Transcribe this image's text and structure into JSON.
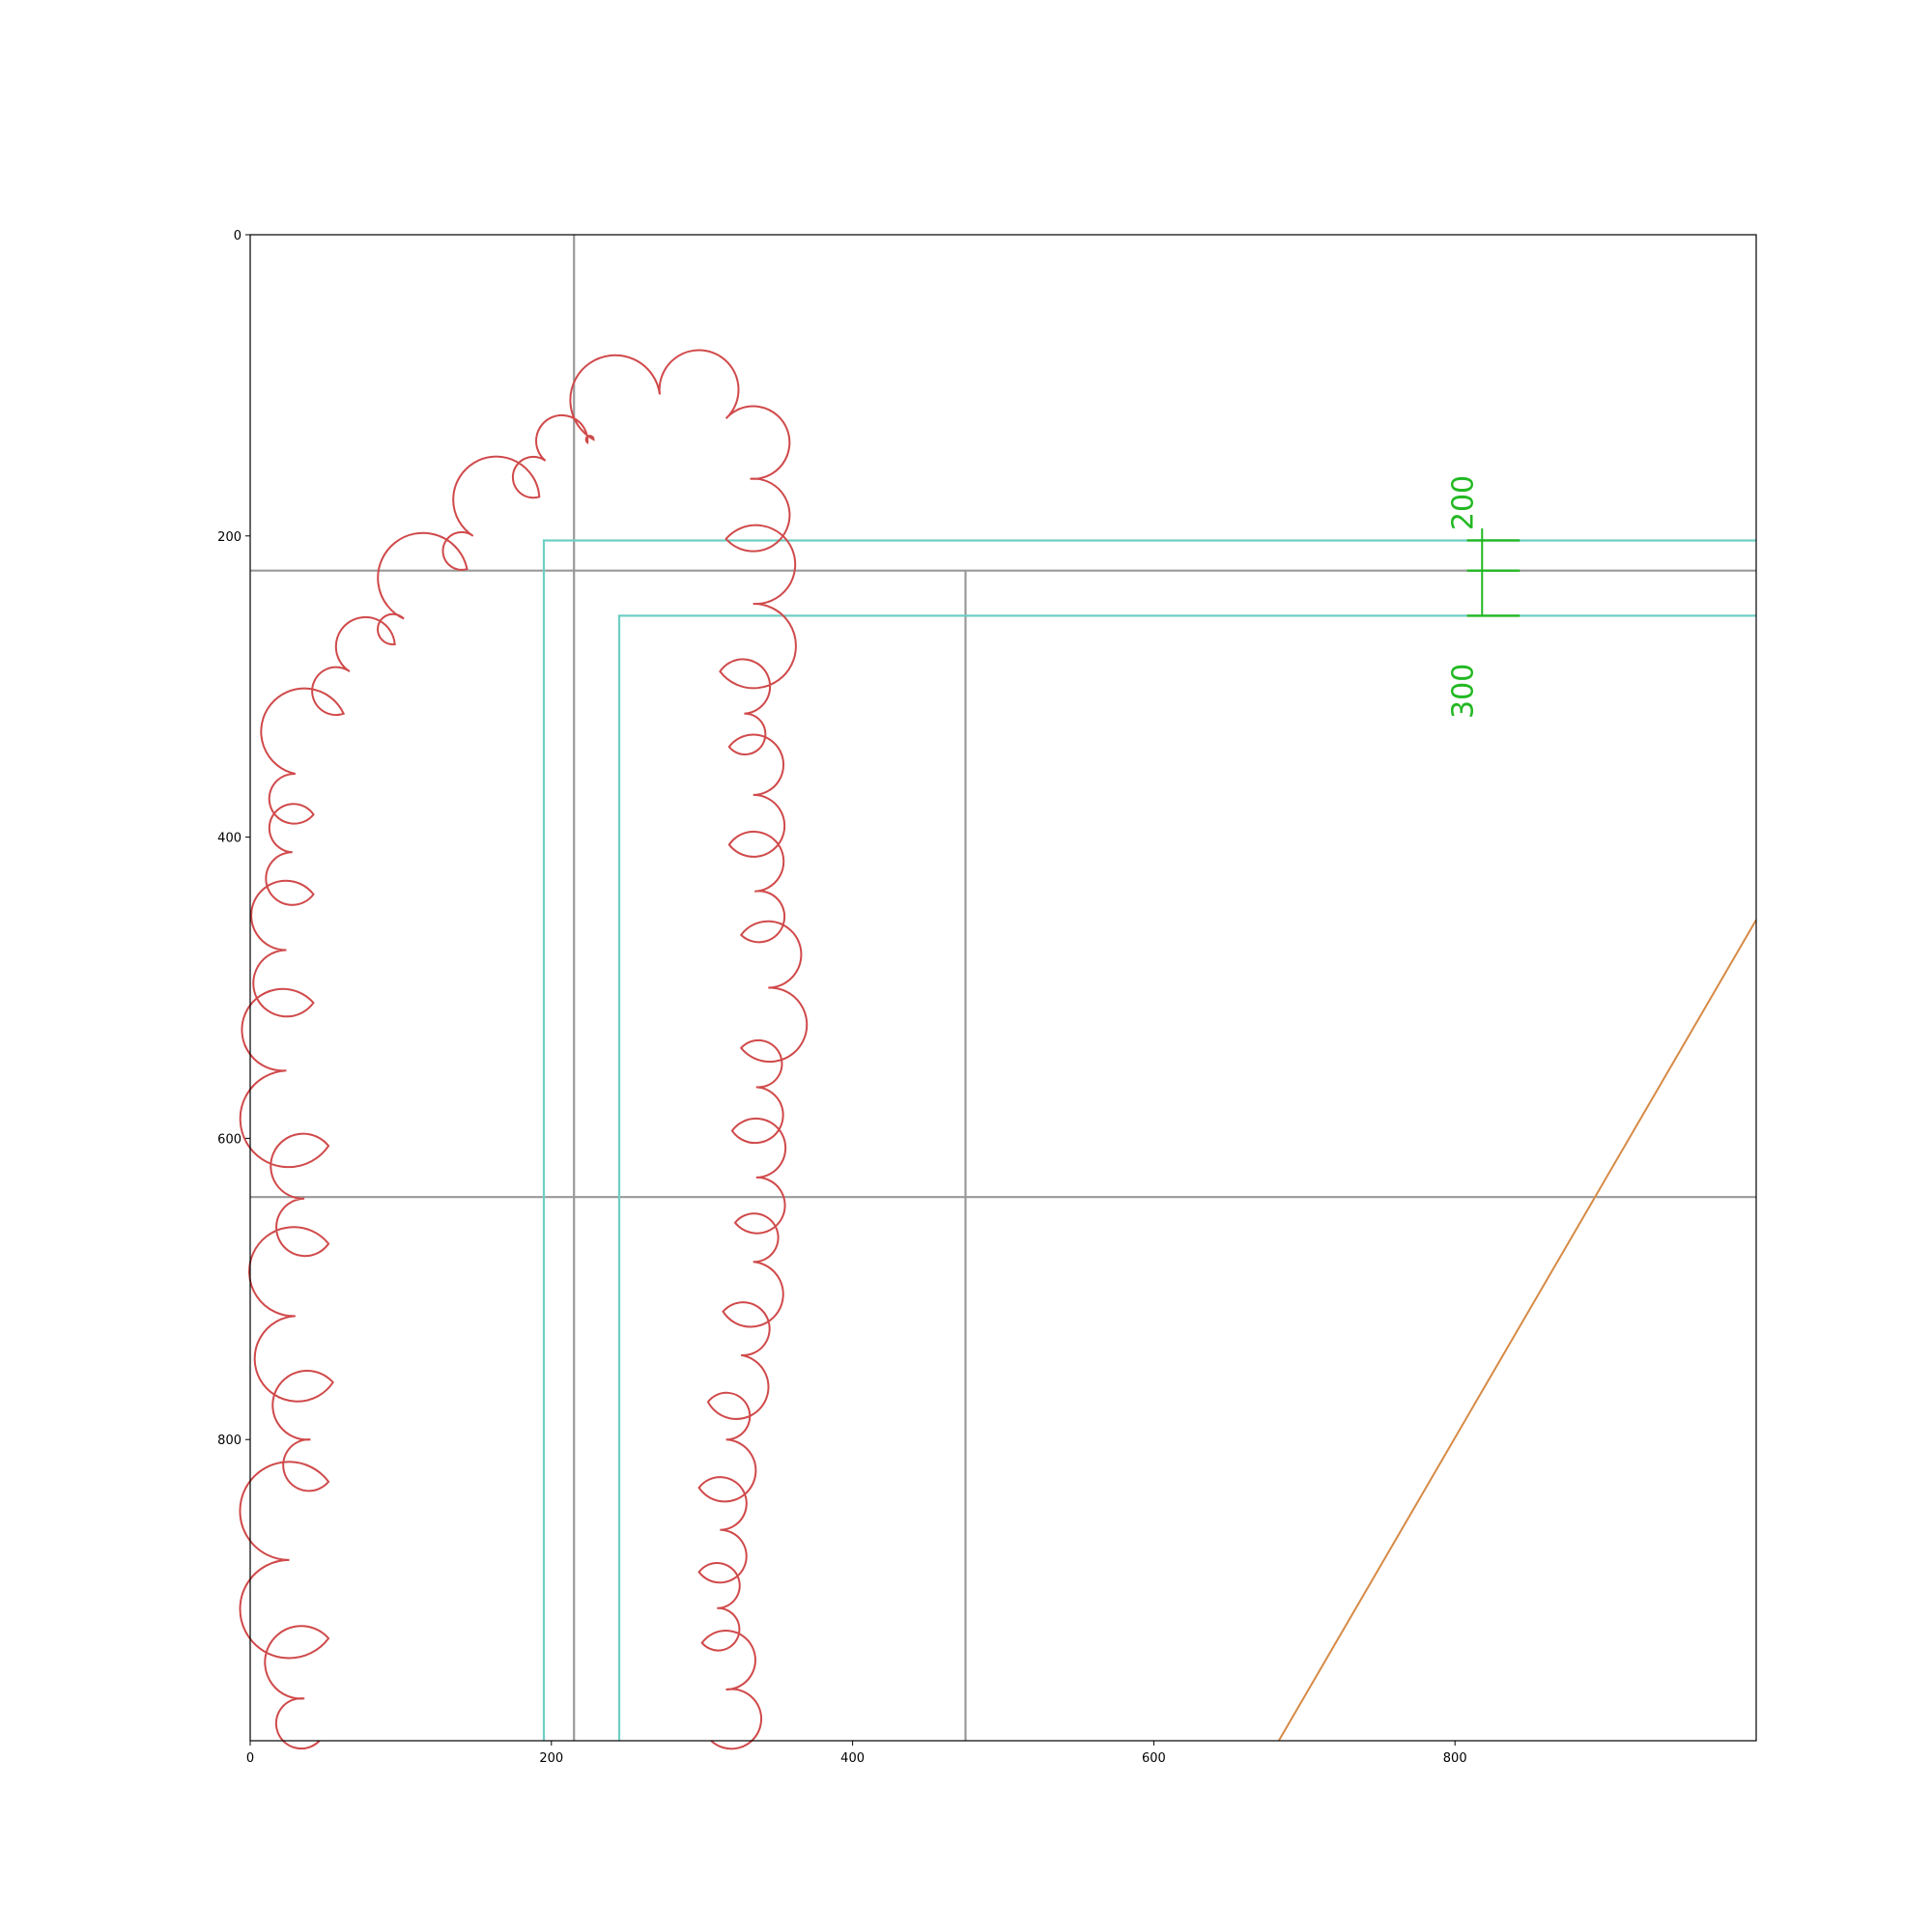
{
  "axes": {
    "xlim": [
      0,
      1000
    ],
    "ylim": [
      1000,
      0
    ],
    "y_inverted": true,
    "xticks": [
      "0",
      "200",
      "400",
      "600",
      "800"
    ],
    "yticks": [
      "0",
      "200",
      "400",
      "600",
      "800"
    ],
    "grid": false
  },
  "colors": {
    "cloud": "#d0494a",
    "section": "#6fcfc4",
    "gridline": "#999999",
    "dimension": "#22b822",
    "diagonal": "#d68a45",
    "frame": "#000000"
  },
  "cloud_outline": {
    "left_boundary": [
      [
        46,
        1000
      ],
      [
        36,
        972
      ],
      [
        52,
        932
      ],
      [
        26,
        880
      ],
      [
        52,
        828
      ],
      [
        40,
        800
      ],
      [
        55,
        762
      ],
      [
        30,
        718
      ],
      [
        52,
        670
      ],
      [
        36,
        640
      ],
      [
        52,
        605
      ],
      [
        24,
        555
      ],
      [
        42,
        510
      ],
      [
        24,
        475
      ],
      [
        42,
        438
      ],
      [
        28,
        410
      ],
      [
        42,
        385
      ],
      [
        30,
        358
      ],
      [
        62,
        318
      ],
      [
        66,
        290
      ],
      [
        96,
        272
      ],
      [
        102,
        255
      ],
      [
        144,
        222
      ],
      [
        148,
        200
      ],
      [
        192,
        174
      ],
      [
        196,
        150
      ],
      [
        224,
        138
      ],
      [
        228,
        136
      ],
      [
        272,
        106
      ]
    ],
    "right_boundary": [
      [
        272,
        106
      ],
      [
        316,
        122
      ],
      [
        332,
        162
      ],
      [
        316,
        202
      ],
      [
        334,
        245
      ],
      [
        312,
        290
      ],
      [
        328,
        318
      ],
      [
        318,
        340
      ],
      [
        334,
        372
      ],
      [
        318,
        405
      ],
      [
        335,
        436
      ],
      [
        326,
        465
      ],
      [
        344,
        500
      ],
      [
        326,
        540
      ],
      [
        336,
        566
      ],
      [
        320,
        595
      ],
      [
        336,
        626
      ],
      [
        322,
        656
      ],
      [
        334,
        682
      ],
      [
        314,
        715
      ],
      [
        326,
        744
      ],
      [
        304,
        775
      ],
      [
        316,
        800
      ],
      [
        298,
        832
      ],
      [
        312,
        860
      ],
      [
        298,
        888
      ],
      [
        310,
        912
      ],
      [
        300,
        935
      ],
      [
        316,
        966
      ],
      [
        306,
        1000
      ]
    ]
  },
  "section_lines": [
    {
      "points": [
        [
          195,
          1000
        ],
        [
          195,
          203
        ],
        [
          1000,
          203
        ]
      ]
    },
    {
      "points": [
        [
          245,
          1000
        ],
        [
          245,
          253
        ],
        [
          1000,
          253
        ]
      ]
    }
  ],
  "grid_lines": [
    {
      "points": [
        [
          215,
          0
        ],
        [
          215,
          1000
        ]
      ]
    },
    {
      "points": [
        [
          0,
          223
        ],
        [
          1000,
          223
        ]
      ]
    },
    {
      "points": [
        [
          475,
          223
        ],
        [
          475,
          1000
        ]
      ]
    },
    {
      "points": [
        [
          0,
          639
        ],
        [
          1000,
          639
        ]
      ]
    }
  ],
  "diagonal_line": {
    "points": [
      [
        683,
        1000
      ],
      [
        1000,
        455
      ]
    ]
  },
  "dimension": {
    "upper_label": "200",
    "lower_label": "300",
    "x": 818,
    "ticks_y": [
      203,
      223,
      253
    ],
    "tick_x_range": [
      808,
      843
    ],
    "vertical_y_range": [
      195,
      253
    ],
    "upper_label_anchor": [
      800,
      178
    ],
    "lower_label_anchor": [
      800,
      303
    ]
  }
}
